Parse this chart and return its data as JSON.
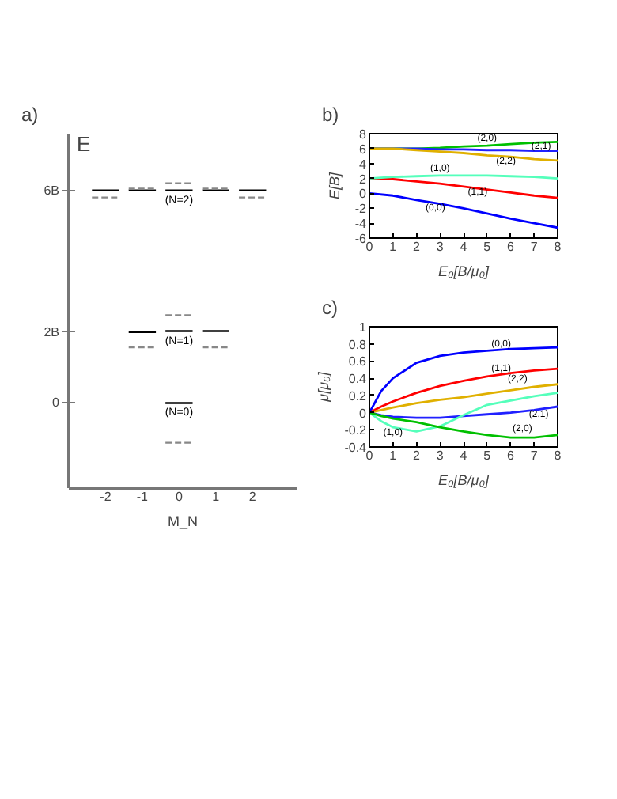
{
  "chart_data": [
    {
      "type": "line",
      "title": "a)",
      "xlabel": "M_N",
      "ylabel": "E",
      "xlim": [
        -3,
        3.2
      ],
      "ylim": [
        -2.4,
        7.6
      ],
      "xticks": [
        -2,
        -1,
        0,
        1,
        2
      ],
      "yticks": [
        0,
        {
          "value": 2,
          "label": "2B"
        },
        {
          "value": 6,
          "label": "6B"
        }
      ],
      "series": [
        {
          "color": "#000000",
          "line_style": "solid",
          "x": [
            -2.37,
            -1.63
          ],
          "values": [
            6.0,
            6.0
          ]
        },
        {
          "color": "#000000",
          "line_style": "solid",
          "x": [
            -1.37,
            -0.63
          ],
          "values": [
            6.0,
            6.0
          ]
        },
        {
          "color": "#000000",
          "line_style": "solid",
          "x": [
            -0.37,
            0.37
          ],
          "values": [
            6.0,
            6.0
          ]
        },
        {
          "color": "#000000",
          "line_style": "solid",
          "x": [
            0.63,
            1.37
          ],
          "values": [
            6.0,
            6.0
          ]
        },
        {
          "color": "#000000",
          "line_style": "solid",
          "x": [
            1.63,
            2.37
          ],
          "values": [
            6.0,
            6.0
          ]
        },
        {
          "color": "#000000",
          "line_style": "solid",
          "x": [
            -1.37,
            -0.63
          ],
          "values": [
            2.0,
            2.0
          ]
        },
        {
          "color": "#000000",
          "line_style": "solid",
          "x": [
            -0.37,
            0.37
          ],
          "values": [
            2.03,
            2.03
          ]
        },
        {
          "color": "#000000",
          "line_style": "solid",
          "x": [
            0.63,
            1.37
          ],
          "values": [
            2.03,
            2.03
          ]
        },
        {
          "color": "#000000",
          "line_style": "solid",
          "x": [
            -0.37,
            0.37
          ],
          "values": [
            0,
            0
          ]
        },
        {
          "color": "#888888",
          "line_style": "dashed",
          "x": [
            -2.37,
            -1.63
          ],
          "values": [
            5.8,
            5.8
          ]
        },
        {
          "color": "#888888",
          "line_style": "dashed",
          "x": [
            -1.37,
            -0.63
          ],
          "values": [
            6.05,
            6.05
          ]
        },
        {
          "color": "#888888",
          "line_style": "dashed",
          "x": [
            -0.37,
            0.37
          ],
          "values": [
            6.2,
            6.2
          ]
        },
        {
          "color": "#888888",
          "line_style": "dashed",
          "x": [
            0.63,
            1.37
          ],
          "values": [
            6.05,
            6.05
          ]
        },
        {
          "color": "#888888",
          "line_style": "dashed",
          "x": [
            1.63,
            2.37
          ],
          "values": [
            5.8,
            5.8
          ]
        },
        {
          "color": "#888888",
          "line_style": "dashed",
          "x": [
            -1.37,
            -0.63
          ],
          "values": [
            1.57,
            1.57
          ]
        },
        {
          "color": "#888888",
          "line_style": "dashed",
          "x": [
            -0.37,
            0.37
          ],
          "values": [
            2.48,
            2.48
          ]
        },
        {
          "color": "#888888",
          "line_style": "dashed",
          "x": [
            0.63,
            1.37
          ],
          "values": [
            1.57,
            1.57
          ]
        },
        {
          "color": "#888888",
          "line_style": "dashed",
          "x": [
            -0.37,
            0.37
          ],
          "values": [
            -1.12,
            -1.12
          ]
        }
      ],
      "annotations": [
        {
          "text": "(N=2)",
          "x": 0,
          "y": 6.0
        },
        {
          "text": "(N=1)",
          "x": 0,
          "y": 2.03
        },
        {
          "text": "(N=0)",
          "x": 0,
          "y": 0
        }
      ]
    },
    {
      "type": "line",
      "title": "b)",
      "xlabel": "E₀[B/μ₀]",
      "ylabel": "E[B]",
      "xlim": [
        0,
        8
      ],
      "ylim": [
        -6,
        8
      ],
      "xticks": [
        0,
        1,
        2,
        3,
        4,
        5,
        6,
        7,
        8
      ],
      "yticks": [
        -6,
        -4,
        -2,
        0,
        2,
        4,
        6,
        8
      ],
      "x": [
        0,
        1,
        2,
        3,
        4,
        5,
        6,
        7,
        8
      ],
      "series": [
        {
          "color": "#0000ff",
          "values": [
            0,
            -0.3,
            -0.9,
            -1.4,
            -2.0,
            -2.7,
            -3.4,
            -4.0,
            -4.6
          ]
        },
        {
          "color": "#ff0000",
          "values": [
            2,
            1.9,
            1.6,
            1.3,
            0.9,
            0.5,
            0.1,
            -0.3,
            -0.6
          ]
        },
        {
          "color": "#55ffbb",
          "values": [
            2,
            2.2,
            2.3,
            2.4,
            2.4,
            2.4,
            2.3,
            2.2,
            2.0
          ]
        },
        {
          "color": "#00c000",
          "values": [
            6,
            6.0,
            6.0,
            6.1,
            6.3,
            6.4,
            6.6,
            6.8,
            6.9
          ]
        },
        {
          "color": "#2020ff",
          "values": [
            6,
            6.0,
            6.0,
            5.9,
            5.9,
            5.8,
            5.8,
            5.7,
            5.7
          ]
        },
        {
          "color": "#e0b000",
          "values": [
            6,
            6.0,
            5.8,
            5.6,
            5.4,
            5.1,
            4.9,
            4.6,
            4.4
          ]
        }
      ],
      "annotations": [
        {
          "text": "(2,0)",
          "x": 5,
          "y": 7.3
        },
        {
          "text": "(2,1)",
          "x": 7.3,
          "y": 6.25
        },
        {
          "text": "(2,2)",
          "x": 5.8,
          "y": 4.2
        },
        {
          "text": "(1,0)",
          "x": 3,
          "y": 3.2
        },
        {
          "text": "(1,1)",
          "x": 4.6,
          "y": 0.0
        },
        {
          "text": "(0,0)",
          "x": 2.8,
          "y": -2.1
        }
      ]
    },
    {
      "type": "line",
      "title": "c)",
      "xlabel": "E₀[B/μ₀]",
      "ylabel": "μ[μ₀]",
      "xlim": [
        0,
        8
      ],
      "ylim": [
        -0.4,
        1
      ],
      "xticks": [
        0,
        1,
        2,
        3,
        4,
        5,
        6,
        7,
        8
      ],
      "yticks": [
        -0.4,
        -0.2,
        0,
        0.2,
        0.4,
        0.6,
        0.8,
        1
      ],
      "x": [
        0,
        0.5,
        1,
        2,
        3,
        4,
        5,
        6,
        7,
        8
      ],
      "series": [
        {
          "color": "#0000ff",
          "values": [
            0,
            0.25,
            0.4,
            0.58,
            0.66,
            0.7,
            0.72,
            0.74,
            0.75,
            0.76
          ]
        },
        {
          "color": "#ff0000",
          "values": [
            0,
            0.07,
            0.13,
            0.23,
            0.31,
            0.37,
            0.42,
            0.46,
            0.49,
            0.51
          ]
        },
        {
          "color": "#e0b000",
          "values": [
            0,
            0.03,
            0.06,
            0.11,
            0.15,
            0.18,
            0.22,
            0.26,
            0.3,
            0.33
          ]
        },
        {
          "color": "#2020ff",
          "values": [
            0,
            -0.03,
            -0.05,
            -0.06,
            -0.06,
            -0.04,
            -0.02,
            0,
            0.03,
            0.07
          ]
        },
        {
          "color": "#55ffbb",
          "values": [
            0,
            -0.1,
            -0.17,
            -0.22,
            -0.16,
            -0.03,
            0.09,
            0.14,
            0.19,
            0.23
          ]
        },
        {
          "color": "#00c000",
          "values": [
            0,
            -0.04,
            -0.07,
            -0.11,
            -0.17,
            -0.22,
            -0.26,
            -0.29,
            -0.29,
            -0.26
          ]
        }
      ],
      "annotations": [
        {
          "text": "(0,0)",
          "x": 5.6,
          "y": 0.79
        },
        {
          "text": "(1,1)",
          "x": 5.6,
          "y": 0.5
        },
        {
          "text": "(2,2)",
          "x": 6.3,
          "y": 0.38
        },
        {
          "text": "(2,1)",
          "x": 7.2,
          "y": -0.03
        },
        {
          "text": "(2,0)",
          "x": 6.5,
          "y": -0.2
        },
        {
          "text": "(1,0)",
          "x": 1,
          "y": -0.24
        }
      ]
    }
  ]
}
